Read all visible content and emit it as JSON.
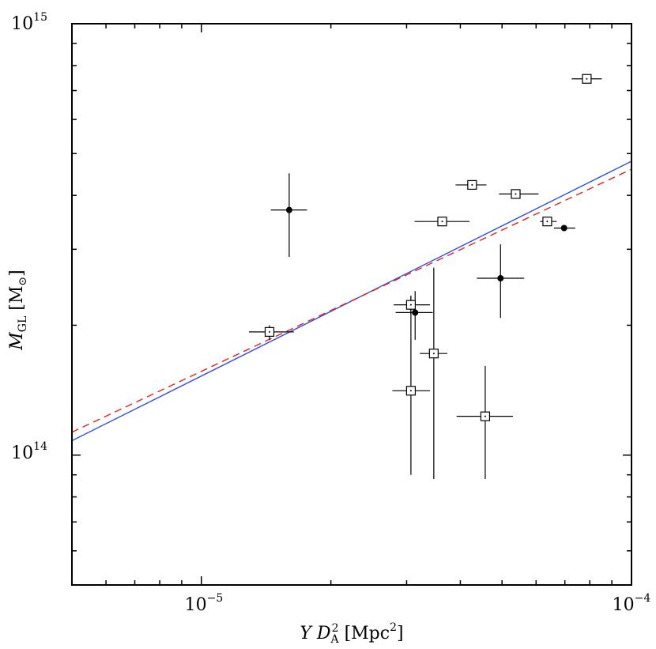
{
  "chart_data": {
    "type": "scatter",
    "title": "",
    "x_axis": {
      "scale": "log",
      "range": [
        5e-06,
        0.0001
      ],
      "major_ticks": [
        {
          "value": 1e-05,
          "base": "10",
          "exponent": "−5"
        },
        {
          "value": 0.0001,
          "base": "10",
          "exponent": "−4"
        }
      ],
      "label": {
        "var": "Y D",
        "sub": "A",
        "sup": "2",
        "unit_open": " [Mpc",
        "unit_sup": "2",
        "unit_close": "]"
      }
    },
    "y_axis": {
      "scale": "log",
      "range": [
        50000000000000.0,
        1000000000000000.0
      ],
      "major_ticks": [
        {
          "value": 100000000000000.0,
          "base": "10",
          "exponent": "14"
        },
        {
          "value": 1000000000000000.0,
          "base": "10",
          "exponent": "15"
        }
      ],
      "label": {
        "var": "M",
        "sub": "GL",
        "unit_open": " [M",
        "unit_sub": "⊙",
        "unit_close": "]"
      }
    },
    "series": [
      {
        "name": "open squares",
        "marker": "square-dot",
        "points": [
          {
            "x": 1.44e-05,
            "y": 193000000000000.0,
            "xerr": [
              1.29e-05,
              1.64e-05
            ],
            "yerr": [
              185000000000000.0,
              200000000000000.0
            ]
          },
          {
            "x": 3.07e-05,
            "y": 223000000000000.0,
            "xerr": [
              2.8e-05,
              3.4e-05
            ],
            "yerr": [
              212000000000000.0,
              234000000000000.0
            ]
          },
          {
            "x": 3.07e-05,
            "y": 141000000000000.0,
            "xerr": [
              2.78e-05,
              3.4e-05
            ],
            "yerr": [
              90000000000000.0,
              234000000000000.0
            ]
          },
          {
            "x": 3.47e-05,
            "y": 172000000000000.0,
            "xerr": [
              3.22e-05,
              3.73e-05
            ],
            "yerr": [
              88000000000000.0,
              272000000000000.0
            ]
          },
          {
            "x": 3.63e-05,
            "y": 348000000000000.0,
            "xerr": [
              3.13e-05,
              4.2e-05
            ],
            "yerr": [
              344000000000000.0,
              352000000000000.0
            ]
          },
          {
            "x": 4.26e-05,
            "y": 423000000000000.0,
            "xerr": [
              3.9e-05,
              4.6e-05
            ],
            "yerr": [
              415000000000000.0,
              431000000000000.0
            ]
          },
          {
            "x": 4.57e-05,
            "y": 123000000000000.0,
            "xerr": [
              3.92e-05,
              5.3e-05
            ],
            "yerr": [
              88000000000000.0,
              161000000000000.0
            ]
          },
          {
            "x": 5.38e-05,
            "y": 403000000000000.0,
            "xerr": [
              4.92e-05,
              6.08e-05
            ],
            "yerr": [
              395000000000000.0,
              411000000000000.0
            ]
          },
          {
            "x": 6.37e-05,
            "y": 348000000000000.0,
            "xerr": [
              6.13e-05,
              6.7e-05
            ],
            "yerr": [
              340000000000000.0,
              356000000000000.0
            ]
          },
          {
            "x": 7.87e-05,
            "y": 745000000000000.0,
            "xerr": [
              7.26e-05,
              8.53e-05
            ],
            "yerr": [
              730000000000000.0,
              760000000000000.0
            ]
          }
        ]
      },
      {
        "name": "filled circles",
        "marker": "filled-circle",
        "points": [
          {
            "x": 1.6e-05,
            "y": 370000000000000.0,
            "xerr": [
              1.45e-05,
              1.76e-05
            ],
            "yerr": [
              288000000000000.0,
              450000000000000.0
            ]
          },
          {
            "x": 3.14e-05,
            "y": 214000000000000.0,
            "xerr": [
              2.83e-05,
              3.45e-05
            ],
            "yerr": [
              185000000000000.0,
              240000000000000.0
            ]
          },
          {
            "x": 4.96e-05,
            "y": 257000000000000.0,
            "xerr": [
              4.37e-05,
              5.63e-05
            ],
            "yerr": [
              208000000000000.0,
              308000000000000.0
            ]
          },
          {
            "x": 6.97e-05,
            "y": 336000000000000.0,
            "xerr": [
              6.6e-05,
              7.4e-05
            ],
            "yerr": [
              332000000000000.0,
              340000000000000.0
            ]
          }
        ]
      }
    ],
    "fit_lines": [
      {
        "name": "solid fit",
        "style": "solid",
        "color": "#3050e0",
        "points": [
          [
            5e-06,
            108000000000000.0
          ],
          [
            0.0001,
            480000000000000.0
          ]
        ]
      },
      {
        "name": "dashed fit",
        "style": "dashed",
        "color": "#e02020",
        "points": [
          [
            5e-06,
            113000000000000.0
          ],
          [
            0.0001,
            460000000000000.0
          ]
        ]
      }
    ],
    "grid": false,
    "legend": "none"
  }
}
